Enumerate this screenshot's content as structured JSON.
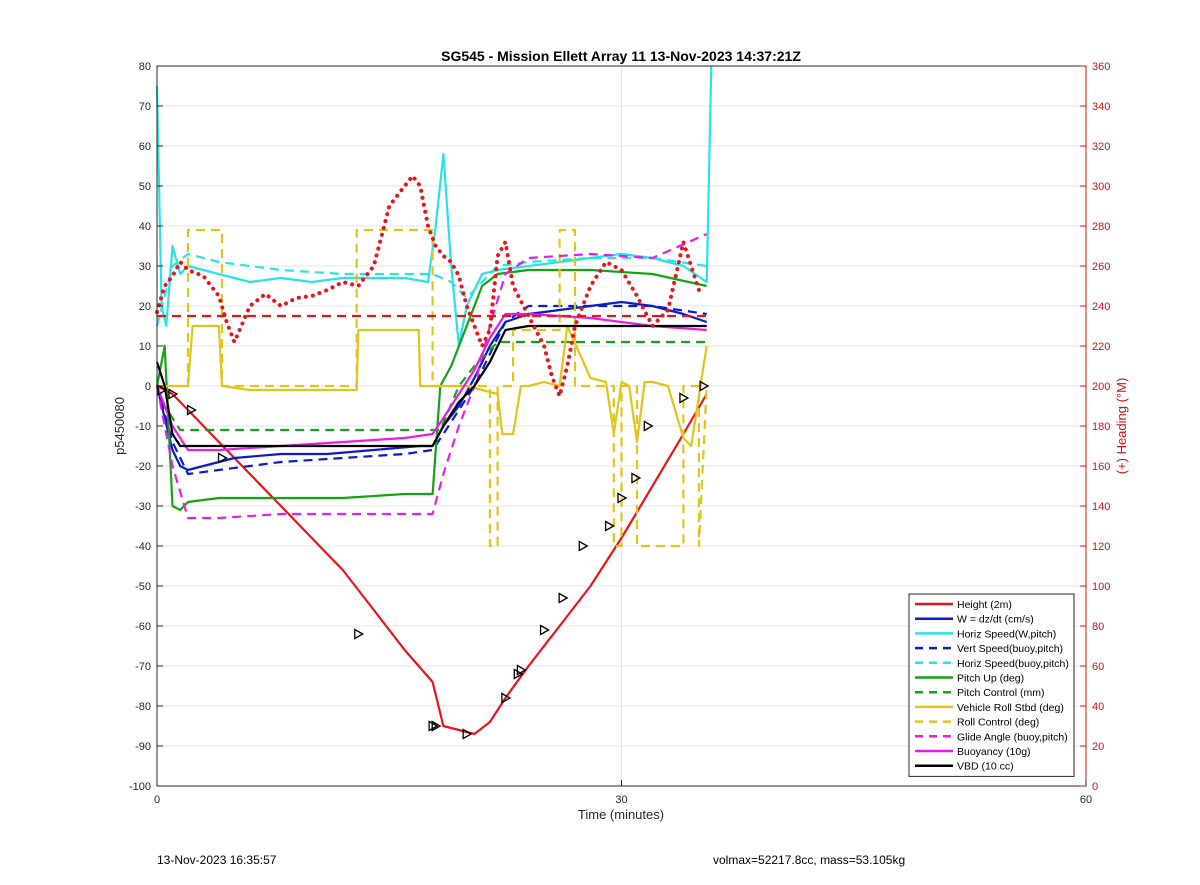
{
  "chart_data": {
    "type": "line",
    "title": "SG545 - Mission Ellett Array 11 13-Nov-2023 14:37:21Z",
    "xlabel": "Time (minutes)",
    "ylabel": "p5450080",
    "y2label": "(+) Heading (°M)",
    "xlim": [
      0,
      60
    ],
    "ylim": [
      -100,
      80
    ],
    "y2lim": [
      0,
      360
    ],
    "xticks": [
      0,
      30,
      60
    ],
    "yticks": [
      -100,
      -90,
      -80,
      -70,
      -60,
      -50,
      -40,
      -30,
      -20,
      -10,
      0,
      10,
      20,
      30,
      40,
      50,
      60,
      70,
      80
    ],
    "y2ticks": [
      0,
      20,
      40,
      60,
      80,
      100,
      120,
      140,
      160,
      180,
      200,
      220,
      240,
      260,
      280,
      300,
      320,
      340,
      360
    ],
    "grid": true,
    "legend_position": "bottom-right",
    "series": [
      {
        "name": "Height (2m)",
        "color": "#e8141b",
        "style": "solid",
        "x": [
          0,
          1,
          2,
          4,
          6,
          8,
          10,
          12,
          14,
          16,
          17.8,
          18.5,
          19.5,
          20.5,
          21.5,
          22.5,
          24,
          26,
          28,
          30,
          32,
          34,
          35.5
        ],
        "y": [
          0,
          -2,
          -6,
          -14,
          -22,
          -30,
          -38,
          -46,
          -56,
          -66,
          -74,
          -85,
          -86,
          -87,
          -84,
          -78,
          -70,
          -60,
          -50,
          -38,
          -25,
          -12,
          -2
        ]
      },
      {
        "name": "W = dz/dt (cm/s)",
        "color": "#0b1cc4",
        "style": "solid",
        "x": [
          0,
          0.5,
          1,
          1.5,
          2,
          3,
          4,
          5,
          8,
          11,
          14,
          17,
          17.8,
          18.5,
          19.5,
          20.5,
          21.5,
          22.5,
          24,
          26,
          28,
          30,
          32,
          34,
          35.5
        ],
        "y": [
          0,
          -8,
          -16,
          -20,
          -21,
          -20,
          -19,
          -18,
          -17,
          -17,
          -16,
          -15,
          -15,
          -10,
          -5,
          2,
          10,
          16,
          18,
          19,
          20,
          21,
          20,
          18,
          16
        ]
      },
      {
        "name": "Horiz Speed(W,pitch)",
        "color": "#29e3e3",
        "style": "solid",
        "x": [
          0,
          0.3,
          0.6,
          1,
          1.5,
          2,
          3,
          4,
          6,
          8,
          10,
          12,
          14,
          16,
          17.5,
          18,
          18.5,
          19,
          19.5,
          20,
          20.5,
          21,
          22,
          24,
          26,
          28,
          30,
          32,
          34,
          35.5,
          35.8
        ],
        "y": [
          75,
          20,
          15,
          35,
          28,
          30,
          29,
          28,
          26,
          27,
          26,
          27,
          27,
          27,
          26,
          40,
          58,
          30,
          10,
          20,
          24,
          28,
          29,
          30,
          31,
          32,
          33,
          32,
          30,
          26,
          80
        ]
      },
      {
        "name": "Vert Speed(buoy,pitch)",
        "color": "#0b1cc4",
        "style": "dashed",
        "x": [
          0,
          1,
          2,
          4,
          8,
          12,
          16,
          17.8,
          18.5,
          19.5,
          20.5,
          21.5,
          22.5,
          24,
          28,
          32,
          35.5
        ],
        "y": [
          0,
          -14,
          -22,
          -21,
          -19,
          -18,
          -17,
          -16,
          -12,
          -6,
          0,
          8,
          16,
          20,
          20,
          20,
          18
        ]
      },
      {
        "name": "Horiz Speed(buoy,pitch)",
        "color": "#29e3e3",
        "style": "dashed",
        "x": [
          0,
          1,
          2,
          4,
          8,
          12,
          16,
          17.8,
          19,
          20,
          21,
          22,
          24,
          28,
          32,
          35.5
        ],
        "y": [
          15,
          30,
          33,
          31,
          29,
          28,
          28,
          28,
          26,
          22,
          26,
          30,
          31,
          32,
          32,
          30
        ]
      },
      {
        "name": "Pitch Up (deg)",
        "color": "#16a216",
        "style": "solid",
        "x": [
          0,
          0.5,
          1,
          1.5,
          2,
          4,
          8,
          12,
          16,
          17.8,
          18.3,
          19,
          20,
          21,
          22,
          24,
          28,
          32,
          35.5
        ],
        "y": [
          0,
          10,
          -30,
          -31,
          -29,
          -28,
          -28,
          -28,
          -27,
          -27,
          0,
          5,
          15,
          25,
          28,
          29,
          29,
          28,
          25
        ]
      },
      {
        "name": "Pitch Control (mm)",
        "color": "#16a216",
        "style": "dashed",
        "x": [
          0,
          0.5,
          1.5,
          17.8,
          18.3,
          19.5,
          20.5,
          22,
          23,
          30,
          35.5
        ],
        "y": [
          0,
          -5,
          -11,
          -11,
          -11,
          0,
          5,
          11,
          11,
          11,
          11
        ]
      },
      {
        "name": "Vehicle Roll Stbd (deg)",
        "color": "#e0c41a",
        "style": "solid",
        "x": [
          0,
          1,
          2,
          2.3,
          4,
          4.2,
          6,
          10,
          12.9,
          13,
          16.9,
          17,
          17.8,
          18,
          20,
          21,
          22,
          22.3,
          23,
          23.5,
          24,
          25,
          26,
          26.5,
          28,
          29,
          29.5,
          30,
          30.5,
          31,
          31.5,
          32,
          33,
          34,
          34.5,
          35.5
        ],
        "y": [
          0,
          0,
          0,
          15,
          15,
          0,
          -1,
          -1,
          -1,
          14,
          14,
          0,
          0,
          0,
          0,
          -1,
          -2,
          -12,
          -12,
          0,
          0,
          1,
          0,
          15,
          2,
          1,
          -12,
          1,
          0,
          -14,
          1,
          1,
          0,
          -13,
          -15,
          10
        ]
      },
      {
        "name": "Roll Control (deg)",
        "color": "#e0c41a",
        "style": "dashed",
        "x": [
          0,
          2,
          2,
          4.2,
          4.2,
          12.9,
          12.9,
          17.8,
          17.8,
          21.5,
          21.5,
          22,
          22,
          23,
          23,
          26,
          26,
          27,
          27,
          29.5,
          29.5,
          30,
          30,
          31,
          31,
          34,
          34,
          35,
          35,
          35.5
        ],
        "y": [
          0,
          0,
          39,
          39,
          0,
          0,
          39,
          39,
          0,
          0,
          -40,
          -40,
          0,
          0,
          14,
          14,
          39,
          39,
          0,
          0,
          -40,
          -40,
          0,
          0,
          -40,
          -40,
          0,
          0,
          -40,
          0
        ]
      },
      {
        "name": "Glide Angle (buoy,pitch)",
        "color": "#e41ee4",
        "style": "dashed",
        "x": [
          0,
          1,
          2,
          4,
          8,
          12,
          16,
          17.8,
          18.5,
          19.5,
          20.5,
          21.5,
          22.5,
          24,
          28,
          32,
          35.5
        ],
        "y": [
          0,
          -20,
          -33,
          -33,
          -32,
          -32,
          -32,
          -32,
          -22,
          -10,
          0,
          15,
          28,
          32,
          33,
          32,
          38
        ]
      },
      {
        "name": "Buoyancy (10g)",
        "color": "#e41ee4",
        "style": "solid",
        "x": [
          0,
          1,
          2,
          4,
          8,
          12,
          16,
          17.8,
          18.5,
          19.5,
          20.5,
          21.5,
          22.5,
          24,
          28,
          32,
          35.5
        ],
        "y": [
          0,
          -10,
          -16,
          -16,
          -15,
          -14,
          -13,
          -12,
          -8,
          -2,
          4,
          12,
          18,
          18,
          17,
          15,
          14
        ]
      },
      {
        "name": "VBD (10 cc)",
        "color": "#000000",
        "style": "solid",
        "x": [
          0,
          0.5,
          1,
          1.5,
          4,
          8,
          12,
          16,
          17.8,
          18.5,
          19.5,
          20.5,
          21.5,
          22.5,
          24,
          28,
          32,
          35.5
        ],
        "y": [
          6,
          0,
          -12,
          -15,
          -15,
          -15,
          -15,
          -15,
          -15,
          -10,
          -4,
          0,
          6,
          14,
          15,
          15,
          15,
          15
        ]
      },
      {
        "name": "",
        "axis": "right",
        "color": "#e8141b",
        "style": "dotted",
        "legend": false,
        "x": [
          0,
          0.5,
          1,
          1.5,
          2,
          3,
          4,
          4.5,
          5,
          6,
          7,
          8,
          9,
          10,
          11,
          12,
          13,
          13.5,
          14,
          15,
          16,
          16.5,
          17,
          17.5,
          18,
          18.5,
          19,
          19.5,
          20,
          20.5,
          21,
          21.5,
          22,
          22.5,
          23,
          24,
          25,
          25.5,
          26,
          26.5,
          27,
          28,
          29,
          30,
          31,
          32,
          33,
          34,
          35
        ],
        "y": [
          237,
          250,
          255,
          262,
          258,
          255,
          245,
          232,
          222,
          240,
          246,
          240,
          244,
          245,
          248,
          252,
          250,
          255,
          260,
          290,
          300,
          305,
          300,
          280,
          270,
          265,
          262,
          255,
          240,
          230,
          220,
          228,
          265,
          272,
          250,
          235,
          220,
          205,
          195,
          210,
          230,
          250,
          262,
          258,
          245,
          230,
          238,
          272,
          248
        ]
      },
      {
        "name": "",
        "axis": "right",
        "color": "#e8141b",
        "style": "dashed",
        "legend": false,
        "x": [
          0,
          35.5
        ],
        "y": [
          235,
          235
        ]
      }
    ],
    "markers": {
      "shape": "triangle-right",
      "color": "#000000",
      "x": [
        0.3,
        1,
        2.2,
        4.2,
        13,
        17.8,
        18,
        20,
        22.5,
        23.3,
        23.5,
        25,
        26.2,
        27.5,
        29.2,
        30,
        30.9,
        31.7,
        34,
        35.3
      ],
      "y": [
        -1,
        -2,
        -6,
        -18,
        -62,
        -85,
        -85,
        -87,
        -78,
        -72,
        -71,
        -61,
        -53,
        -40,
        -35,
        -28,
        -23,
        -10,
        -3,
        0
      ]
    }
  },
  "footer": {
    "left": "13-Nov-2023 16:35:57",
    "right": "volmax=52217.8cc, mass=53.105kg"
  }
}
